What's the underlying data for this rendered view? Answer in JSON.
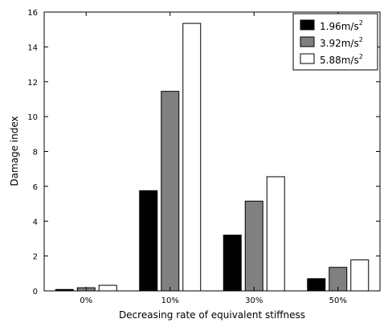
{
  "chart_data": {
    "type": "bar",
    "title": "",
    "xlabel": "Decreasing rate of equivalent stiffness",
    "ylabel": "Damage index",
    "categories": [
      "0%",
      "10%",
      "30%",
      "50%"
    ],
    "ylim": [
      0,
      16
    ],
    "yticks": [
      0,
      2,
      4,
      6,
      8,
      10,
      12,
      14,
      16
    ],
    "grid": false,
    "legend_position": "top-right",
    "series": [
      {
        "name": "1.96m/s",
        "superscript": "2",
        "color": "#000000",
        "values": [
          0.08,
          5.75,
          3.2,
          0.7
        ]
      },
      {
        "name": "3.92m/s",
        "superscript": "2",
        "color": "#808080",
        "values": [
          0.18,
          11.45,
          5.15,
          1.35
        ]
      },
      {
        "name": "5.88m/s",
        "superscript": "2",
        "color": "#ffffff",
        "values": [
          0.32,
          15.35,
          6.55,
          1.78
        ]
      }
    ]
  }
}
